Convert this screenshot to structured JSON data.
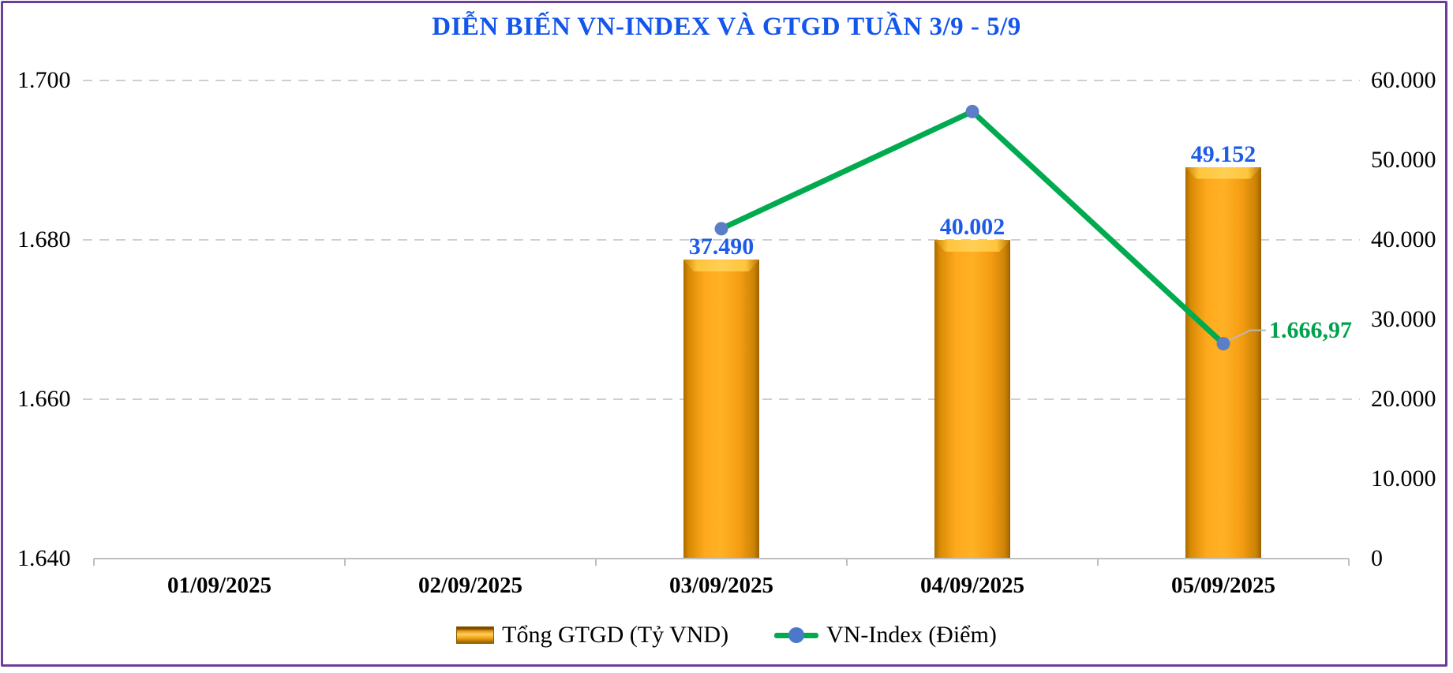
{
  "title": "DIỄN BIẾN VN-INDEX VÀ GTGD TUẦN 3/9 - 5/9",
  "chart_data": {
    "type": "combo",
    "categories": [
      "01/09/2025",
      "02/09/2025",
      "03/09/2025",
      "04/09/2025",
      "05/09/2025"
    ],
    "series": [
      {
        "name": "Tổng GTGD (Tỷ VND)",
        "type": "bar",
        "axis": "right",
        "values": [
          null,
          null,
          37490,
          40002,
          49152
        ],
        "data_labels": [
          null,
          null,
          "37.490",
          "40.002",
          "49.152"
        ]
      },
      {
        "name": "VN-Index (Điểm)",
        "type": "line",
        "axis": "left",
        "values": [
          null,
          null,
          1681.4,
          1696.1,
          1666.97
        ],
        "data_labels": [
          null,
          null,
          null,
          null,
          "1.666,97"
        ]
      }
    ],
    "left_axis": {
      "min": 1640,
      "max": 1700,
      "ticks": [
        "1.700",
        "1.680",
        "1.660",
        "1.640"
      ]
    },
    "right_axis": {
      "min": 0,
      "max": 60000,
      "ticks": [
        "60.000",
        "50.000",
        "40.000",
        "30.000",
        "20.000",
        "10.000",
        "0"
      ]
    },
    "grid": "horizontal dashed lines at left-axis tick levels",
    "legend_position": "bottom"
  },
  "legend": [
    {
      "swatch": "orange-3d-bar",
      "label": "Tổng GTGD (Tỷ VND)"
    },
    {
      "swatch": "green-line-blue-dot",
      "label": "VN-Index (Điểm)"
    }
  ],
  "colors": {
    "title_blue": "#1456EC",
    "bar_label_blue": "#1E5CE8",
    "bar_orange": "#F9A11B",
    "bar_orange_light": "#FFC53C",
    "bar_orange_dark": "#A96B00",
    "line_green": "#00AB4F",
    "point_label_green": "#00A24D",
    "marker_blue": "#5B7EC9",
    "leader_gray": "#B9B9B9",
    "grid_gray": "#CFCFCF",
    "axis_gray": "#BFBFBF",
    "border_purple": "#6B3E99"
  }
}
